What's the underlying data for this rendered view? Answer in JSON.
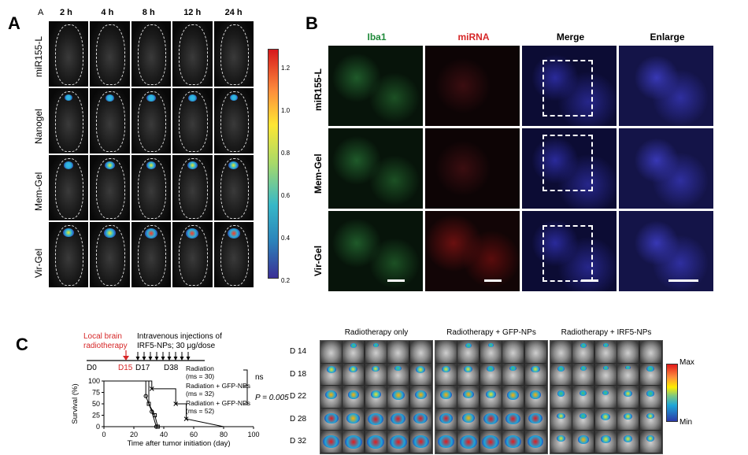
{
  "panelA": {
    "letter": "A",
    "corner": "A",
    "timepoints": [
      "2 h",
      "4 h",
      "8 h",
      "12 h",
      "24 h"
    ],
    "rows": [
      "miR155-L",
      "Nanogel",
      "Mem-Gel",
      "Vir-Gel"
    ],
    "colorbar_ticks": [
      "1.2",
      "1.0",
      "0.8",
      "0.6",
      "0.4",
      "0.2"
    ]
  },
  "panelB": {
    "letter": "B",
    "columns": [
      "Iba1",
      "miRNA",
      "Merge",
      "Enlarge"
    ],
    "rows": [
      "miR155-L",
      "Mem-Gel",
      "Vir-Gel"
    ]
  },
  "panelC": {
    "letter": "C",
    "timeline": {
      "local_label_1": "Local brain",
      "local_label_2": "radiotherapy",
      "iv_label_1": "Intravenous injections of",
      "iv_label_2": "IRF5-NPs; 30 μg/dose",
      "d0": "D0",
      "d15": "D15",
      "d17": "D17",
      "d38": "D38"
    },
    "chart_data": {
      "type": "line",
      "xlabel": "Time after tumor initiation (day)",
      "ylabel": "Survival (%)",
      "xlim": [
        0,
        100
      ],
      "ylim": [
        0,
        100
      ],
      "xticks": [
        "0",
        "20",
        "40",
        "60",
        "80",
        "100"
      ],
      "yticks": [
        "0",
        "25",
        "50",
        "75",
        "100"
      ],
      "series": [
        {
          "name": "Radiation (ms = 30)",
          "x": [
            0,
            22,
            28,
            28,
            32,
            35,
            35
          ],
          "y": [
            100,
            100,
            100,
            67,
            33,
            0,
            0
          ]
        },
        {
          "name": "Radiation + GFP-NPs (ms = 32)",
          "x": [
            0,
            25,
            30,
            30,
            34,
            36,
            36
          ],
          "y": [
            100,
            100,
            100,
            50,
            25,
            0,
            0
          ]
        },
        {
          "name": "Radiation + GFP-NPs (ms = 52)",
          "x": [
            0,
            32,
            32,
            48,
            48,
            55,
            55,
            80
          ],
          "y": [
            100,
            100,
            83,
            83,
            50,
            50,
            17,
            0
          ]
        }
      ],
      "annotations": [
        "ns",
        "P = 0.005"
      ]
    },
    "legend": [
      {
        "line1": "Radiation",
        "line2": "(ms = 30)"
      },
      {
        "line1": "Radiation + GFP-NPs",
        "line2": "(ms = 32)"
      },
      {
        "line1": "Radiation + GFP-NPs",
        "line2": "(ms = 52)"
      }
    ],
    "ns": "ns",
    "pval": "P = 0.005"
  },
  "panelD": {
    "groups": [
      "Radiotherapy only",
      "Radiotherapy + GFP-NPs",
      "Radiotherapy + IRF5-NPs"
    ],
    "days": [
      "D 14",
      "D 18",
      "D 22",
      "D 28",
      "D 32"
    ],
    "scale_max": "Max",
    "scale_min": "Min"
  }
}
